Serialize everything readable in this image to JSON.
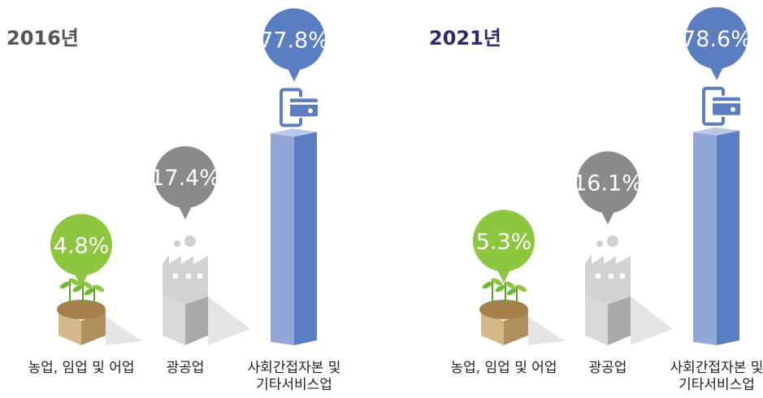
{
  "chart_data": [
    {
      "type": "bar",
      "title": "2016년",
      "title_color": "#555555",
      "categories": [
        "농업, 임업 및 어업",
        "광공업",
        "사회간접자본 및 기타서비스업"
      ],
      "values": [
        4.8,
        17.4,
        77.8
      ],
      "value_labels": [
        "4.8%",
        "17.4%",
        "77.8%"
      ],
      "colors": [
        "#8dc63f",
        "#8a8a8a",
        "#5b7ec2"
      ]
    },
    {
      "type": "bar",
      "title": "2021년",
      "title_color": "#2e2a6b",
      "categories": [
        "농업, 임업 및 어업",
        "광공업",
        "사회간접자본 및 기타서비스업"
      ],
      "values": [
        5.3,
        16.1,
        78.6
      ],
      "value_labels": [
        "5.3%",
        "16.1%",
        "78.6%"
      ],
      "colors": [
        "#8dc63f",
        "#8a8a8a",
        "#5b7ec2"
      ]
    }
  ]
}
